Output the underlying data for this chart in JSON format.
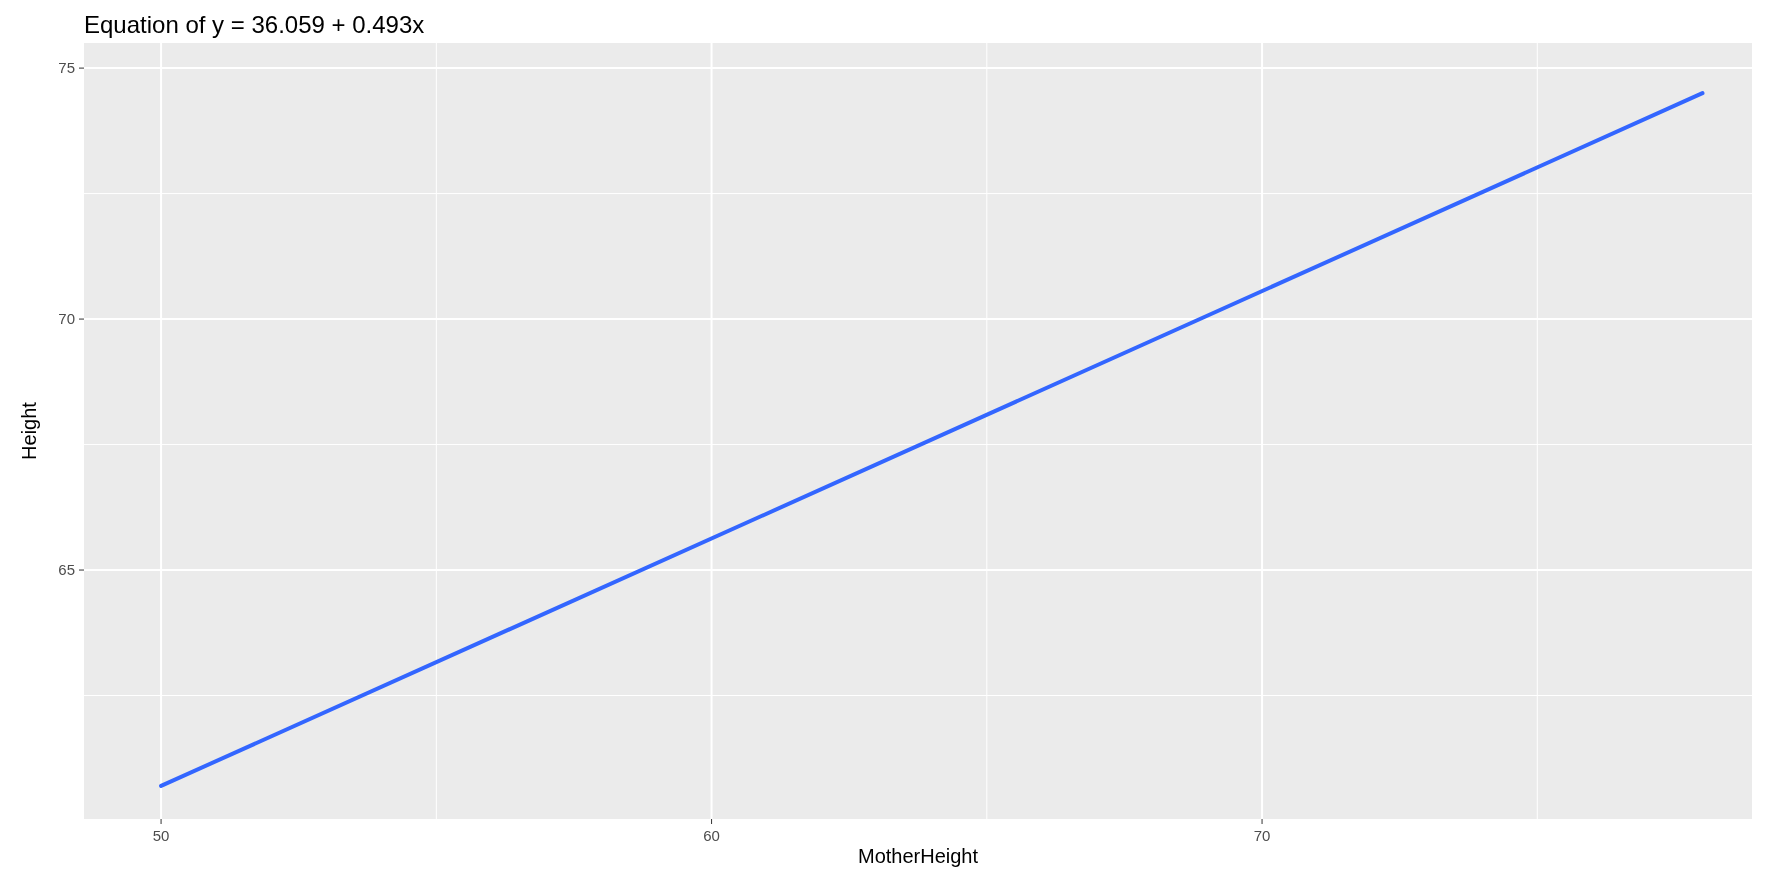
{
  "chart_data": {
    "type": "line",
    "title": "Equation of y = 36.059 + 0.493x",
    "xlabel": "MotherHeight",
    "ylabel": "Height",
    "x": [
      50,
      78
    ],
    "series": [
      {
        "color": "#3366ff",
        "values": [
          60.7,
          74.5
        ]
      }
    ],
    "xlim": [
      48.6,
      78.9
    ],
    "xticks": [
      50,
      60,
      70
    ],
    "ylim": [
      60.04,
      75.5
    ],
    "yticks": [
      65,
      70,
      75
    ],
    "grid": true,
    "marker": "none",
    "line_style": "solid"
  }
}
